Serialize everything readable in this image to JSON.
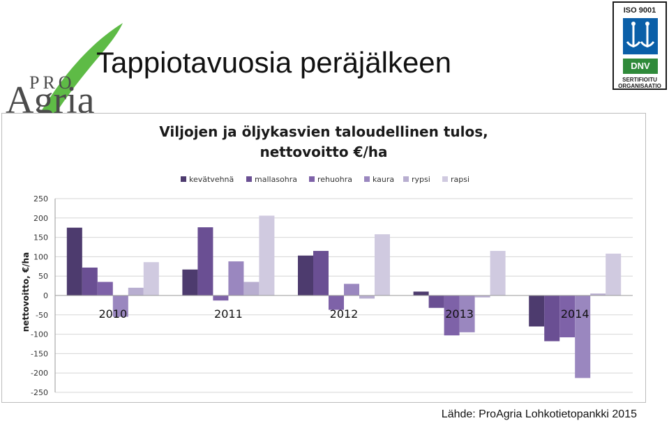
{
  "slide": {
    "title": "Tappiotavuosia peräjälkeen",
    "source": "Lähde: ProAgria Lohkotietopankki 2015"
  },
  "logo": {
    "pro": "PRO",
    "agria": "Agria",
    "leaf_color": "#5ebb46"
  },
  "cert": {
    "top": "ISO 9001",
    "dnv": "DNV",
    "bottom1": "SERTIFIOITU",
    "bottom2": "ORGANISAATIO"
  },
  "chart_data": {
    "type": "bar",
    "title": "Viljojen ja öljykasvien taloudellinen tulos,",
    "subtitle": "nettovoitto €/ha",
    "xlabel": "",
    "ylabel": "nettovoitto, €/ha",
    "ylim": [
      -250,
      250
    ],
    "yticks": [
      250,
      200,
      150,
      100,
      50,
      0,
      -50,
      -100,
      -150,
      -200,
      -250
    ],
    "grid": true,
    "legend_position": "top",
    "categories": [
      "2010",
      "2011",
      "2012",
      "2013",
      "2014"
    ],
    "series": [
      {
        "name": "kevätvehnä",
        "color": "#4d3b6e",
        "values": [
          175,
          67,
          103,
          10,
          -80
        ]
      },
      {
        "name": "mallasohra",
        "color": "#6a4f93",
        "values": [
          72,
          176,
          115,
          -32,
          -118
        ]
      },
      {
        "name": "rehuohra",
        "color": "#7e62a8",
        "values": [
          35,
          -13,
          -37,
          -103,
          -108
        ]
      },
      {
        "name": "kaura",
        "color": "#9a87bf",
        "values": [
          -55,
          88,
          30,
          -95,
          -213
        ]
      },
      {
        "name": "rypsi",
        "color": "#b8aed0",
        "values": [
          20,
          35,
          -8,
          -5,
          5
        ]
      },
      {
        "name": "rapsi",
        "color": "#d0cae0",
        "values": [
          86,
          206,
          158,
          115,
          108
        ]
      }
    ]
  }
}
